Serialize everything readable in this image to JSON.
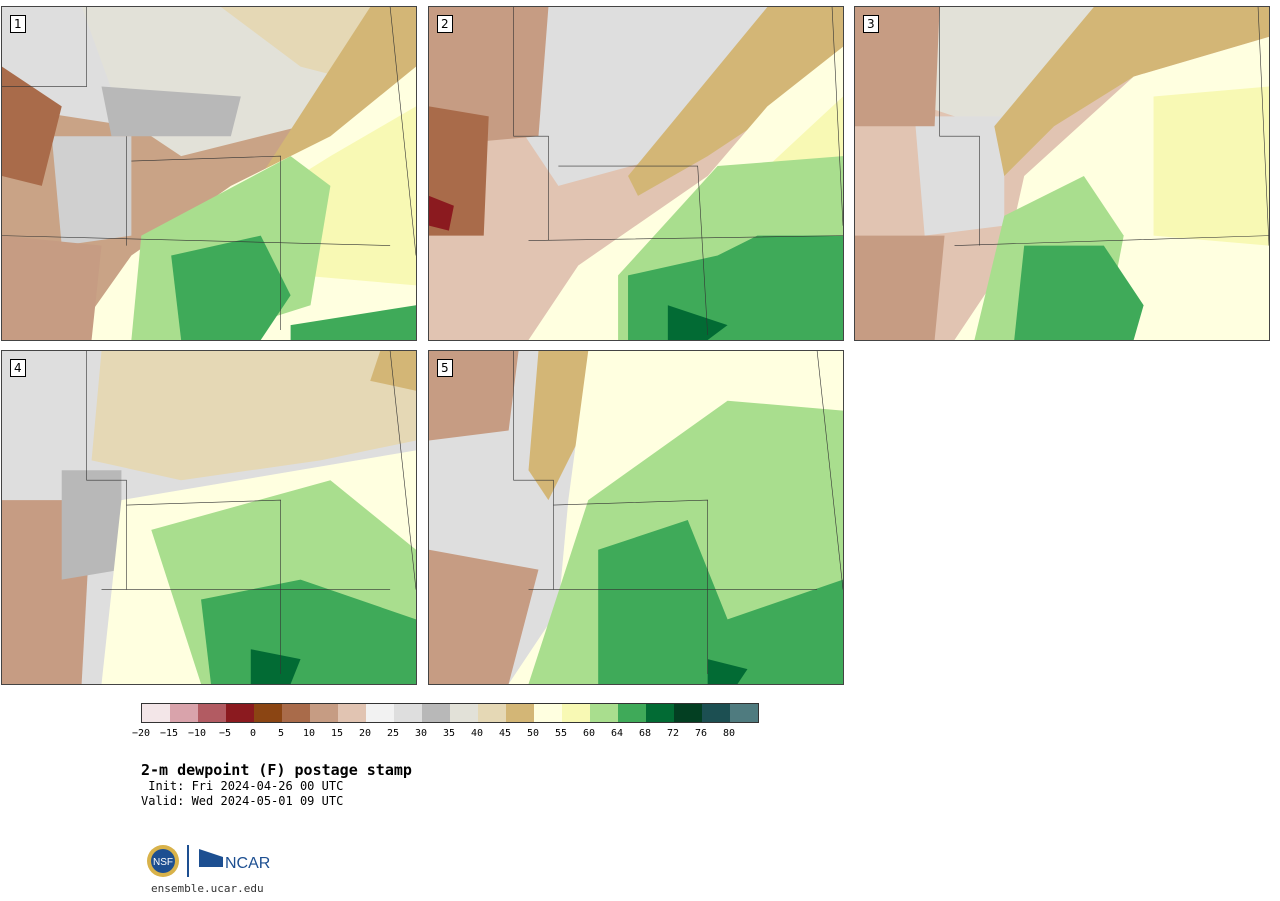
{
  "stamps": [
    {
      "label": "1"
    },
    {
      "label": "2"
    },
    {
      "label": "3"
    },
    {
      "label": "4"
    },
    {
      "label": "5"
    }
  ],
  "colorbar": {
    "colors": [
      "#f3e6e8",
      "#d9a3ab",
      "#b25b62",
      "#8b1a1f",
      "#8b4513",
      "#a96b4a",
      "#c69c83",
      "#e1c4b2",
      "#f2f2f2",
      "#dedede",
      "#b8b8b8",
      "#e2e1d8",
      "#e5d8b5",
      "#d3b676",
      "#ffffe0",
      "#f8f9b4",
      "#a9de8e",
      "#3faa59",
      "#026b34",
      "#033f22",
      "#1c4f52",
      "#4f7b7f"
    ],
    "tick_labels": [
      "−20",
      "−15",
      "−10",
      "−5",
      "0",
      "5",
      "10",
      "15",
      "20",
      "25",
      "30",
      "35",
      "40",
      "45",
      "50",
      "55",
      "60",
      "64",
      "68",
      "72",
      "76",
      "80"
    ]
  },
  "title": "2-m dewpoint (F) postage stamp",
  "init": " Init: Fri 2024-04-26 00 UTC",
  "valid": "Valid: Wed 2024-05-01 09 UTC",
  "logo": {
    "nsf": "NSF",
    "ncar": "NCAR"
  },
  "footer_url": "ensemble.ucar.edu"
}
